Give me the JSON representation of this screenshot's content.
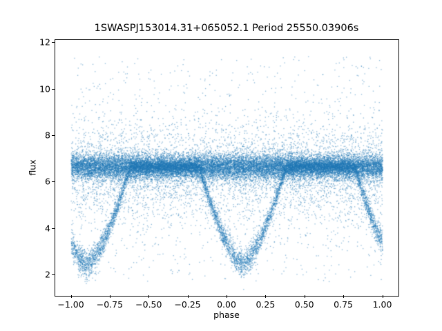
{
  "chart_data": {
    "type": "scatter",
    "title": "1SWASPJ153014.31+065052.1 Period 25550.03906s",
    "xlabel": "phase",
    "ylabel": "flux",
    "xlim": [
      -1.1,
      1.1
    ],
    "ylim": [
      1.1,
      12.1
    ],
    "grid": false,
    "legend": null,
    "xticks": [
      -1.0,
      -0.75,
      -0.5,
      -0.25,
      0.0,
      0.25,
      0.5,
      0.75,
      1.0
    ],
    "xtick_labels": [
      "−1.00",
      "−0.75",
      "−0.50",
      "−0.25",
      "0.00",
      "0.25",
      "0.50",
      "0.75",
      "1.00"
    ],
    "yticks": [
      2,
      4,
      6,
      8,
      10,
      12
    ],
    "ytick_labels": [
      "2",
      "4",
      "6",
      "8",
      "10",
      "12"
    ],
    "marker_color": "#1f77b4",
    "marker_alpha": 0.55,
    "marker_size_px": 1.3,
    "n_points": 30000,
    "seed": 1530,
    "phase_range": [
      -1.0,
      1.0
    ],
    "model": {
      "description": "Folded eclipsing-binary light curve: dense out-of-eclipse band plus V-shaped eclipse tracks repeating every 1.0 in phase, with broad scatter and uniform outliers.",
      "baseline_flux_mean": 6.65,
      "baseline_flux_sigma": 0.28,
      "eclipse_center_phase": 0.1,
      "eclipse_repeat_phase": 1.0,
      "eclipse_half_width_phase": 0.28,
      "eclipse_min_flux": 2.45,
      "eclipse_profile_exponent": 1.5,
      "eclipse_branch_sigma": 0.13,
      "eclipse_branch_sigma_bottom_extra": 0.17,
      "broad_scatter_center": 6.4,
      "broad_scatter_sigma": 1.15,
      "outlier_flux_range": [
        1.7,
        11.4
      ],
      "fractions": {
        "baseline": 0.55,
        "eclipse_track": 0.27,
        "broad_scatter": 0.15,
        "uniform_outliers": 0.03
      },
      "observed_flux_extremes": [
        1.7,
        11.4
      ],
      "eclipse_minima_visible_phases": [
        -0.9,
        0.1
      ],
      "flux_at_phase_edges": 3.5
    }
  }
}
